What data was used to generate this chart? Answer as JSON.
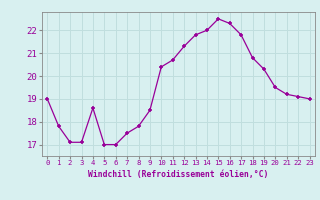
{
  "hours": [
    0,
    1,
    2,
    3,
    4,
    5,
    6,
    7,
    8,
    9,
    10,
    11,
    12,
    13,
    14,
    15,
    16,
    17,
    18,
    19,
    20,
    21,
    22,
    23
  ],
  "values": [
    19.0,
    17.8,
    17.1,
    17.1,
    18.6,
    17.0,
    17.0,
    17.5,
    17.8,
    18.5,
    20.4,
    20.7,
    21.3,
    21.8,
    22.0,
    22.5,
    22.3,
    21.8,
    20.8,
    20.3,
    19.5,
    19.2,
    19.1,
    19.0
  ],
  "line_color": "#990099",
  "marker": "+",
  "bg_color": "#d8f0f0",
  "grid_color": "#b8d8d8",
  "xlabel": "Windchill (Refroidissement éolien,°C)",
  "xlabel_color": "#990099",
  "tick_color": "#990099",
  "spine_color": "#888888",
  "ylim": [
    16.5,
    22.8
  ],
  "yticks": [
    17,
    18,
    19,
    20,
    21,
    22
  ],
  "xlim": [
    -0.5,
    23.5
  ],
  "figsize": [
    3.2,
    2.0
  ],
  "dpi": 100
}
